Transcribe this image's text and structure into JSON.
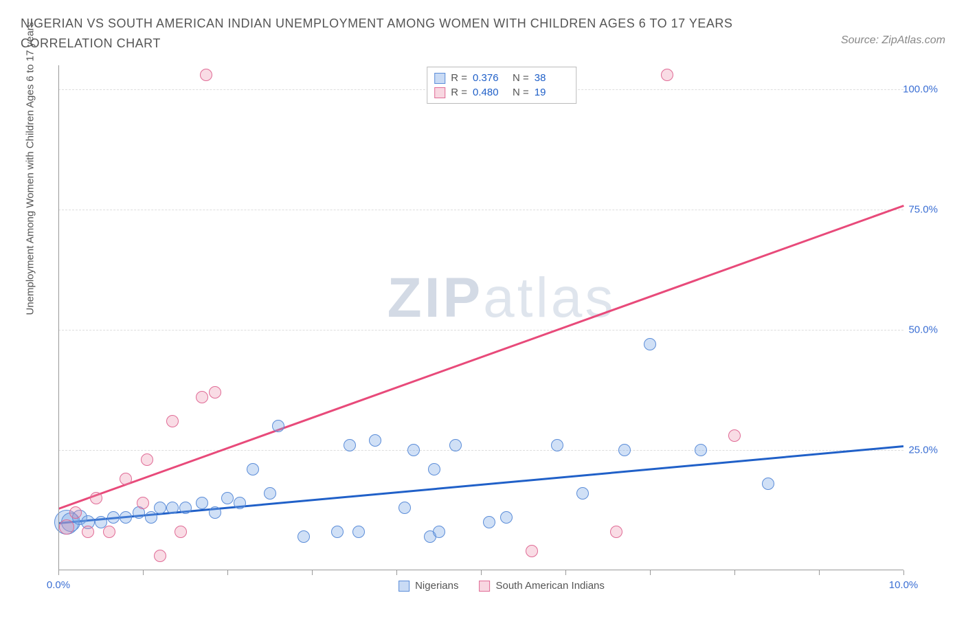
{
  "title": "NIGERIAN VS SOUTH AMERICAN INDIAN UNEMPLOYMENT AMONG WOMEN WITH CHILDREN AGES 6 TO 17 YEARS CORRELATION CHART",
  "source": "Source: ZipAtlas.com",
  "y_axis_label": "Unemployment Among Women with Children Ages 6 to 17 years",
  "watermark_a": "ZIP",
  "watermark_b": "atlas",
  "chart": {
    "type": "scatter",
    "xlim": [
      0,
      10
    ],
    "ylim": [
      0,
      105
    ],
    "x_ticks": [
      0,
      1,
      2,
      3,
      4,
      5,
      6,
      7,
      8,
      9,
      10
    ],
    "x_tick_labels": {
      "0": "0.0%",
      "10": "10.0%"
    },
    "y_ticks": [
      25,
      50,
      75,
      100
    ],
    "y_tick_labels": [
      "25.0%",
      "50.0%",
      "75.0%",
      "100.0%"
    ],
    "grid_color": "#dddddd",
    "axis_color": "#999999",
    "background_color": "#ffffff",
    "tick_label_color": "#3b6fd4"
  },
  "series": [
    {
      "name": "Nigerians",
      "color_fill": "rgba(120,165,230,0.35)",
      "color_stroke": "#5a8cd8",
      "trend_color": "#2060c8",
      "r_value": "0.376",
      "n_value": "38",
      "trend": {
        "x1": 0,
        "y1": 10,
        "x2": 10,
        "y2": 26
      },
      "points": [
        {
          "x": 0.1,
          "y": 10,
          "r": 18
        },
        {
          "x": 0.15,
          "y": 10,
          "r": 14
        },
        {
          "x": 0.25,
          "y": 11,
          "r": 11
        },
        {
          "x": 0.35,
          "y": 10,
          "r": 10
        },
        {
          "x": 0.5,
          "y": 10,
          "r": 9
        },
        {
          "x": 0.65,
          "y": 11,
          "r": 9
        },
        {
          "x": 0.8,
          "y": 11,
          "r": 9
        },
        {
          "x": 0.95,
          "y": 12,
          "r": 9
        },
        {
          "x": 1.1,
          "y": 11,
          "r": 9
        },
        {
          "x": 1.2,
          "y": 13,
          "r": 9
        },
        {
          "x": 1.35,
          "y": 13,
          "r": 9
        },
        {
          "x": 1.5,
          "y": 13,
          "r": 9
        },
        {
          "x": 1.7,
          "y": 14,
          "r": 9
        },
        {
          "x": 1.85,
          "y": 12,
          "r": 9
        },
        {
          "x": 2.0,
          "y": 15,
          "r": 9
        },
        {
          "x": 2.15,
          "y": 14,
          "r": 9
        },
        {
          "x": 2.3,
          "y": 21,
          "r": 9
        },
        {
          "x": 2.5,
          "y": 16,
          "r": 9
        },
        {
          "x": 2.6,
          "y": 30,
          "r": 9
        },
        {
          "x": 2.9,
          "y": 7,
          "r": 9
        },
        {
          "x": 3.3,
          "y": 8,
          "r": 9
        },
        {
          "x": 3.45,
          "y": 26,
          "r": 9
        },
        {
          "x": 3.55,
          "y": 8,
          "r": 9
        },
        {
          "x": 3.75,
          "y": 27,
          "r": 9
        },
        {
          "x": 4.1,
          "y": 13,
          "r": 9
        },
        {
          "x": 4.2,
          "y": 25,
          "r": 9
        },
        {
          "x": 4.4,
          "y": 7,
          "r": 9
        },
        {
          "x": 4.45,
          "y": 21,
          "r": 9
        },
        {
          "x": 4.5,
          "y": 8,
          "r": 9
        },
        {
          "x": 4.7,
          "y": 26,
          "r": 9
        },
        {
          "x": 5.1,
          "y": 10,
          "r": 9
        },
        {
          "x": 5.3,
          "y": 11,
          "r": 9
        },
        {
          "x": 5.9,
          "y": 26,
          "r": 9
        },
        {
          "x": 6.2,
          "y": 16,
          "r": 9
        },
        {
          "x": 6.7,
          "y": 25,
          "r": 9
        },
        {
          "x": 7.0,
          "y": 47,
          "r": 9
        },
        {
          "x": 7.6,
          "y": 25,
          "r": 9
        },
        {
          "x": 8.4,
          "y": 18,
          "r": 9
        }
      ]
    },
    {
      "name": "South American Indians",
      "color_fill": "rgba(235,140,170,0.3)",
      "color_stroke": "#e06a95",
      "trend_color": "#e84a7a",
      "r_value": "0.480",
      "n_value": "19",
      "trend": {
        "x1": 0,
        "y1": 13,
        "x2": 10,
        "y2": 76
      },
      "points": [
        {
          "x": 0.1,
          "y": 9,
          "r": 11
        },
        {
          "x": 0.2,
          "y": 12,
          "r": 9
        },
        {
          "x": 0.35,
          "y": 8,
          "r": 9
        },
        {
          "x": 0.45,
          "y": 15,
          "r": 9
        },
        {
          "x": 0.6,
          "y": 8,
          "r": 9
        },
        {
          "x": 0.8,
          "y": 19,
          "r": 9
        },
        {
          "x": 1.0,
          "y": 14,
          "r": 9
        },
        {
          "x": 1.05,
          "y": 23,
          "r": 9
        },
        {
          "x": 1.2,
          "y": 3,
          "r": 9
        },
        {
          "x": 1.35,
          "y": 31,
          "r": 9
        },
        {
          "x": 1.45,
          "y": 8,
          "r": 9
        },
        {
          "x": 1.7,
          "y": 36,
          "r": 9
        },
        {
          "x": 1.75,
          "y": 103,
          "r": 9
        },
        {
          "x": 1.85,
          "y": 37,
          "r": 9
        },
        {
          "x": 5.2,
          "y": 103,
          "r": 9
        },
        {
          "x": 5.6,
          "y": 4,
          "r": 9
        },
        {
          "x": 6.6,
          "y": 8,
          "r": 9
        },
        {
          "x": 7.2,
          "y": 103,
          "r": 9
        },
        {
          "x": 8.0,
          "y": 28,
          "r": 9
        }
      ]
    }
  ],
  "stats_labels": {
    "r": "R =",
    "n": "N ="
  }
}
